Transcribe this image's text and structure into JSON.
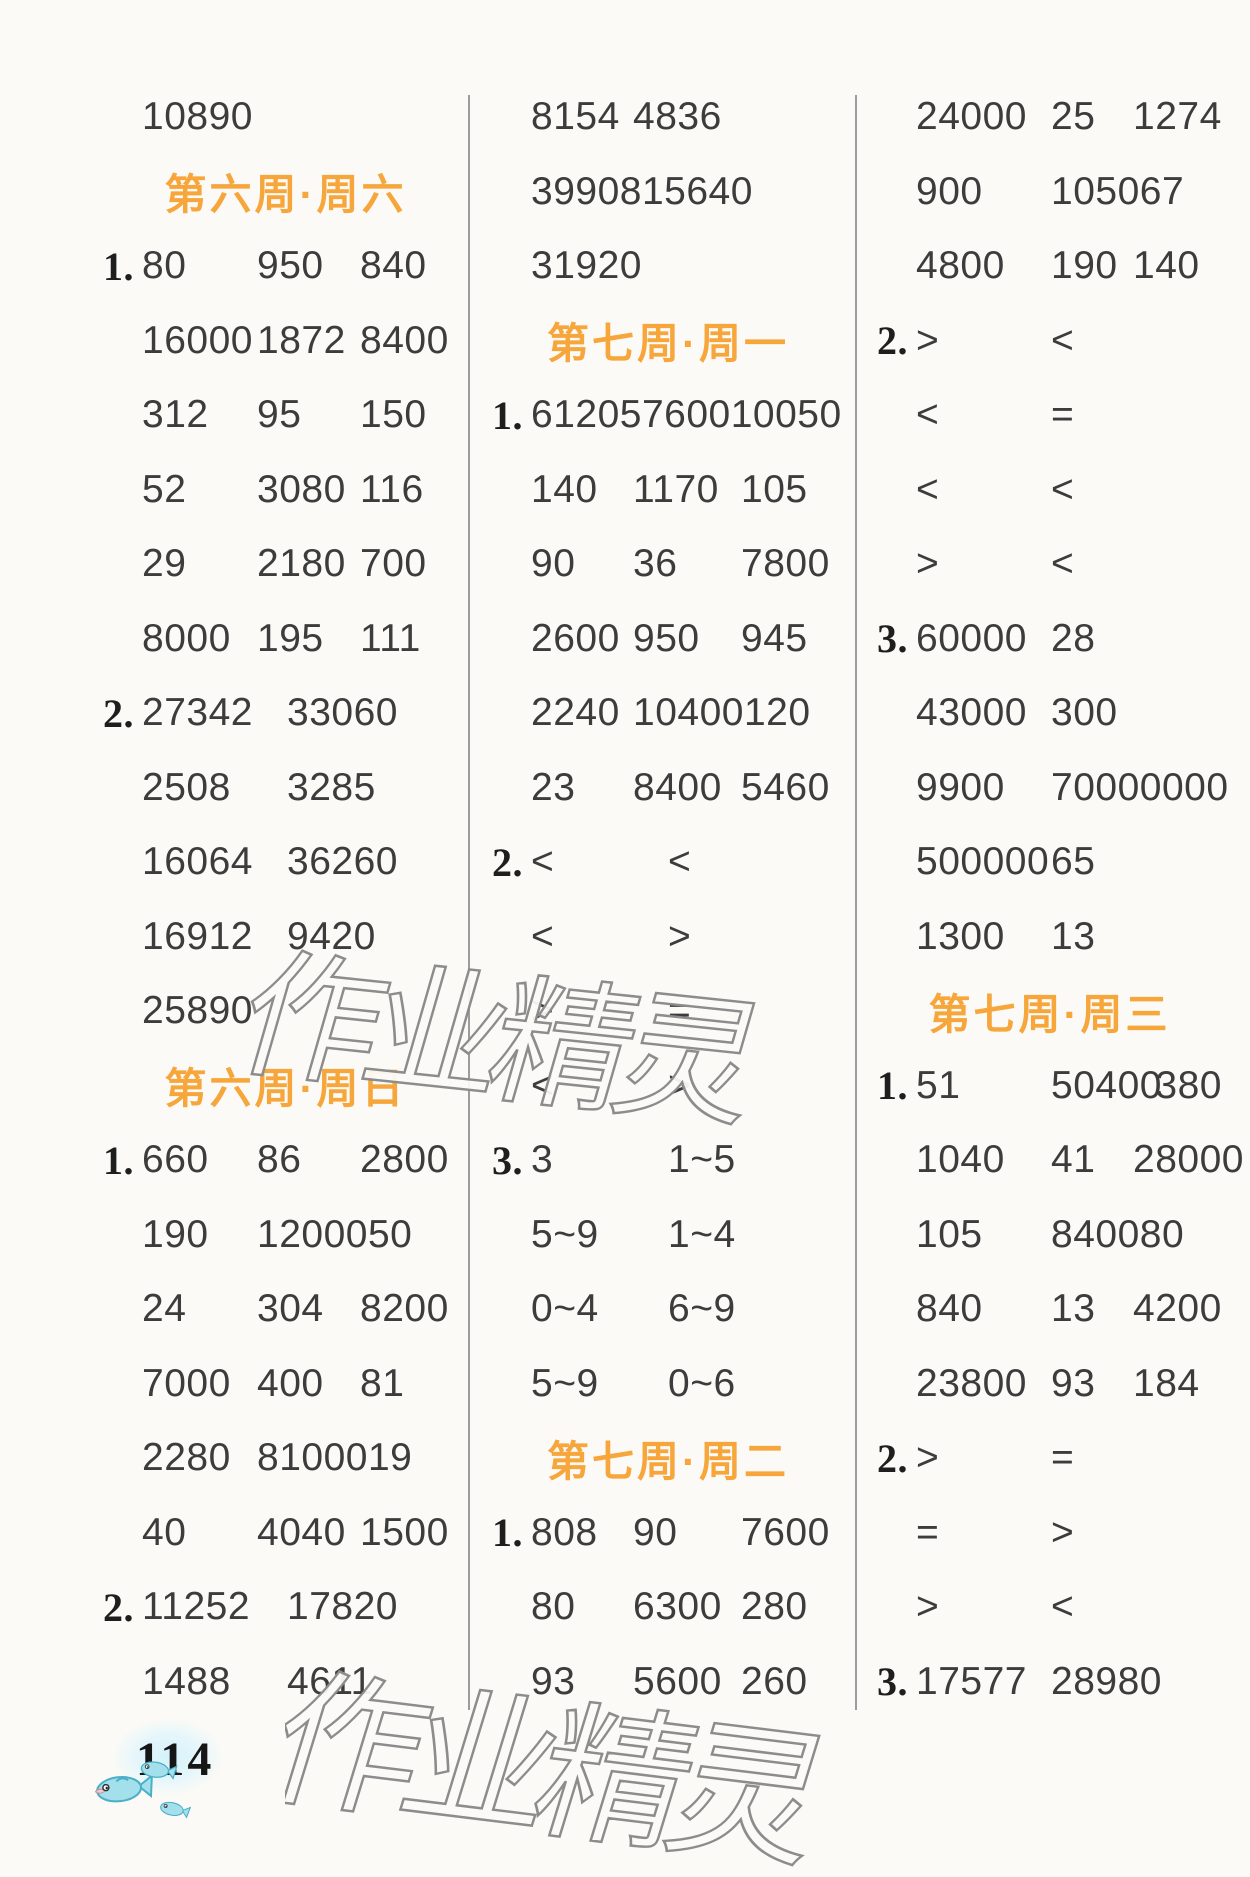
{
  "page": {
    "number": "114"
  },
  "watermark": {
    "text": "作业精灵"
  },
  "colors": {
    "background": "#fbfaf6",
    "header_orange": "#f6a63b",
    "text": "#3c3c3c",
    "divider_gray": "#9c9c9c",
    "watermark_stroke": "#8c8c8c",
    "fish_body": "#a3e0ec",
    "fish_outline": "#4aafc7"
  },
  "columns": [
    {
      "rows": [
        {
          "type": "answers",
          "cells": [
            "10890"
          ]
        },
        {
          "type": "header",
          "text": "第六周·周六"
        },
        {
          "type": "answers",
          "label": "1.",
          "cells": [
            "80",
            "950",
            "840"
          ]
        },
        {
          "type": "answers",
          "cells": [
            "16000",
            "1872",
            "8400"
          ]
        },
        {
          "type": "answers",
          "cells": [
            "312",
            "95",
            "150"
          ]
        },
        {
          "type": "answers",
          "cells": [
            "52",
            "3080",
            "116"
          ]
        },
        {
          "type": "answers",
          "cells": [
            "29",
            "2180",
            "700"
          ]
        },
        {
          "type": "answers",
          "cells": [
            "8000",
            "195",
            "111"
          ]
        },
        {
          "type": "answers",
          "label": "2.",
          "flag": "wide2",
          "cells": [
            "27342",
            "33060"
          ]
        },
        {
          "type": "answers",
          "flag": "wide2",
          "cells": [
            "2508",
            "3285"
          ]
        },
        {
          "type": "answers",
          "flag": "wide2",
          "cells": [
            "16064",
            "36260"
          ]
        },
        {
          "type": "answers",
          "flag": "wide2",
          "cells": [
            "16912",
            "9420"
          ]
        },
        {
          "type": "answers",
          "cells": [
            "25890"
          ]
        },
        {
          "type": "header",
          "text": "第六周·周日"
        },
        {
          "type": "answers",
          "label": "1.",
          "cells": [
            "660",
            "86",
            "2800"
          ]
        },
        {
          "type": "answers",
          "cells": [
            "190",
            "12000",
            "50"
          ]
        },
        {
          "type": "answers",
          "cells": [
            "24",
            "304",
            "8200"
          ]
        },
        {
          "type": "answers",
          "cells": [
            "7000",
            "400",
            "81"
          ]
        },
        {
          "type": "answers",
          "cells": [
            "2280",
            "81000",
            "19"
          ]
        },
        {
          "type": "answers",
          "cells": [
            "40",
            "4040",
            "1500"
          ]
        },
        {
          "type": "answers",
          "label": "2.",
          "flag": "wide2",
          "cells": [
            "11252",
            "17820"
          ]
        },
        {
          "type": "answers",
          "flag": "wide2",
          "cells": [
            "1488",
            "4611"
          ]
        }
      ]
    },
    {
      "rows": [
        {
          "type": "answers",
          "flag": "wide2",
          "cells": [
            "8154",
            "4836"
          ]
        },
        {
          "type": "answers",
          "flag": "wide2",
          "cells": [
            "39908",
            "15640"
          ]
        },
        {
          "type": "answers",
          "cells": [
            "31920"
          ]
        },
        {
          "type": "header",
          "text": "第七周·周一"
        },
        {
          "type": "answers",
          "label": "1.",
          "flag": "tight",
          "cells": [
            "6120",
            "57600",
            "10050"
          ]
        },
        {
          "type": "answers",
          "cells": [
            "140",
            "1170",
            "105"
          ]
        },
        {
          "type": "answers",
          "cells": [
            "90",
            "36",
            "7800"
          ]
        },
        {
          "type": "answers",
          "cells": [
            "2600",
            "950",
            "945"
          ]
        },
        {
          "type": "answers",
          "cells": [
            "2240",
            "10400",
            "120"
          ]
        },
        {
          "type": "answers",
          "cells": [
            "23",
            "8400",
            "5460"
          ]
        },
        {
          "type": "answers",
          "label": "2.",
          "flag": "cmp",
          "cells": [
            "<",
            "<"
          ]
        },
        {
          "type": "answers",
          "flag": "cmp",
          "cells": [
            "<",
            ">"
          ]
        },
        {
          "type": "answers",
          "flag": "cmp",
          "cells": [
            ">",
            "="
          ]
        },
        {
          "type": "answers",
          "flag": "cmp",
          "cells": [
            "<",
            ">"
          ]
        },
        {
          "type": "answers",
          "label": "3.",
          "flag": "cmp",
          "cells": [
            "3",
            "1~5"
          ]
        },
        {
          "type": "answers",
          "flag": "cmp",
          "cells": [
            "5~9",
            "1~4"
          ]
        },
        {
          "type": "answers",
          "flag": "cmp",
          "cells": [
            "0~4",
            "6~9"
          ]
        },
        {
          "type": "answers",
          "flag": "cmp",
          "cells": [
            "5~9",
            "0~6"
          ]
        },
        {
          "type": "header",
          "text": "第七周·周二"
        },
        {
          "type": "answers",
          "label": "1.",
          "cells": [
            "808",
            "90",
            "7600"
          ]
        },
        {
          "type": "answers",
          "cells": [
            "80",
            "6300",
            "280"
          ]
        },
        {
          "type": "answers",
          "cells": [
            "93",
            "5600",
            "260"
          ]
        }
      ]
    },
    {
      "rows": [
        {
          "type": "answers",
          "cells": [
            "24000",
            "25",
            "1274"
          ]
        },
        {
          "type": "answers",
          "cells": [
            "900",
            "1050",
            "67"
          ]
        },
        {
          "type": "answers",
          "cells": [
            "4800",
            "190",
            "140"
          ]
        },
        {
          "type": "answers",
          "label": "2.",
          "flag": "cmp",
          "cells": [
            ">",
            "<"
          ]
        },
        {
          "type": "answers",
          "flag": "cmp",
          "cells": [
            "<",
            "="
          ]
        },
        {
          "type": "answers",
          "flag": "cmp",
          "cells": [
            "<",
            "<"
          ]
        },
        {
          "type": "answers",
          "flag": "cmp",
          "cells": [
            ">",
            "<"
          ]
        },
        {
          "type": "answers",
          "label": "3.",
          "flag": "wide2",
          "cells": [
            "60000",
            "28"
          ]
        },
        {
          "type": "answers",
          "flag": "wide2",
          "cells": [
            "43000",
            "300"
          ]
        },
        {
          "type": "answers",
          "flag": "wide2",
          "cells": [
            "9900",
            "70000000"
          ]
        },
        {
          "type": "answers",
          "flag": "wide2",
          "cells": [
            "500000",
            "65"
          ]
        },
        {
          "type": "answers",
          "flag": "wide2",
          "cells": [
            "1300",
            "13"
          ]
        },
        {
          "type": "header",
          "text": "第七周·周三"
        },
        {
          "type": "answers",
          "label": "1.",
          "cells": [
            "51",
            "50400",
            "380"
          ]
        },
        {
          "type": "answers",
          "cells": [
            "1040",
            "41",
            "28000"
          ]
        },
        {
          "type": "answers",
          "cells": [
            "105",
            "8400",
            "80"
          ]
        },
        {
          "type": "answers",
          "cells": [
            "840",
            "13",
            "4200"
          ]
        },
        {
          "type": "answers",
          "cells": [
            "23800",
            "93",
            "184"
          ]
        },
        {
          "type": "answers",
          "label": "2.",
          "flag": "cmp",
          "cells": [
            ">",
            "="
          ]
        },
        {
          "type": "answers",
          "flag": "cmp",
          "cells": [
            "=",
            ">"
          ]
        },
        {
          "type": "answers",
          "flag": "cmp",
          "cells": [
            ">",
            "<"
          ]
        },
        {
          "type": "answers",
          "label": "3.",
          "flag": "wide2",
          "cells": [
            "17577",
            "28980"
          ]
        }
      ]
    }
  ]
}
